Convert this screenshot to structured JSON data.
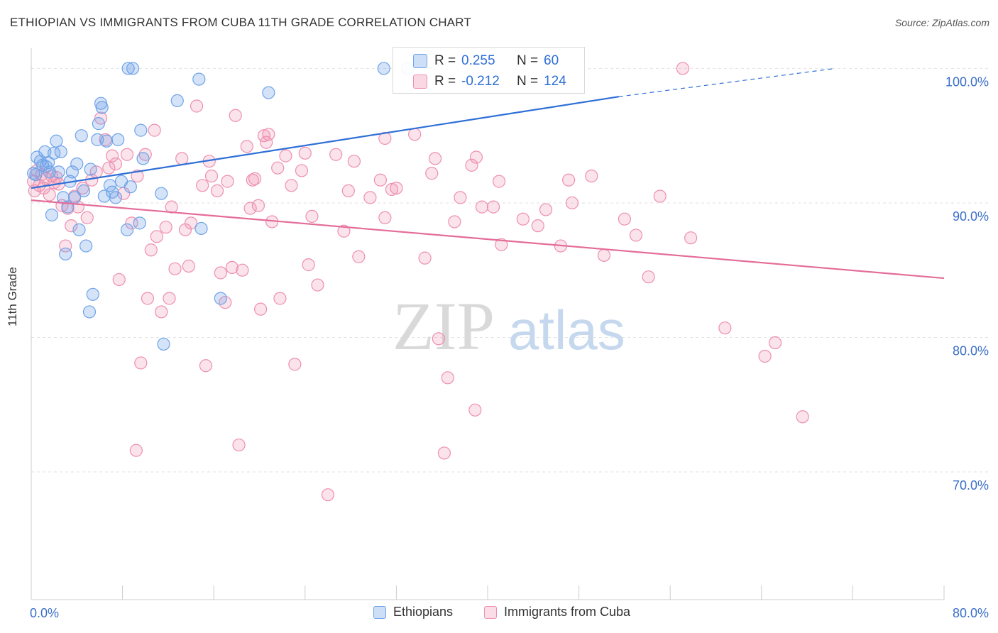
{
  "title": "ETHIOPIAN VS IMMIGRANTS FROM CUBA 11TH GRADE CORRELATION CHART",
  "source": "Source: ZipAtlas.com",
  "watermark": {
    "zip": "ZIP",
    "atlas": "atlas"
  },
  "colors": {
    "blue": "#6fa3e8",
    "blue_fill": "rgba(111,163,232,0.30)",
    "blue_line": "#2f6fd6",
    "pink": "#ee8faf",
    "pink_fill": "rgba(238,143,175,0.25)",
    "pink_line": "#e46c98",
    "axis_text": "#3b6fc9"
  },
  "stats": {
    "ethiopians": {
      "r_label": "R =",
      "r_value": "0.255",
      "n_label": "N =",
      "n_value": "60"
    },
    "cuba": {
      "r_label": "R =",
      "r_value": "-0.212",
      "n_label": "N =",
      "n_value": "124"
    }
  },
  "legend": {
    "ethiopians": "Ethiopians",
    "cuba": "Immigrants from Cuba"
  },
  "chart_data": {
    "type": "scatter",
    "title": "ETHIOPIAN VS IMMIGRANTS FROM CUBA 11TH GRADE CORRELATION CHART",
    "xlabel": "",
    "ylabel": "11th Grade",
    "xlim": [
      0,
      80
    ],
    "ylim": [
      60.5,
      101.5
    ],
    "x_tick_labels": [
      "0.0%",
      "80.0%"
    ],
    "y_ticks": [
      100,
      90,
      80,
      70
    ],
    "y_tick_labels": [
      "100.0%",
      "90.0%",
      "80.0%",
      "70.0%"
    ],
    "grid": true,
    "legend_position": "bottom",
    "series": [
      {
        "name": "Ethiopians",
        "color": "#6fa3e8",
        "trend": {
          "x": [
            0,
            51.5
          ],
          "y": [
            91.1,
            97.9
          ],
          "dashed_to": [
            51.5,
            51.8,
            97.9,
            100.0
          ]
        },
        "points": [
          [
            0.2,
            92.2
          ],
          [
            0.4,
            92.1
          ],
          [
            0.5,
            93.4
          ],
          [
            0.8,
            93.1
          ],
          [
            1.0,
            92.8
          ],
          [
            1.2,
            93.8
          ],
          [
            1.3,
            92.7
          ],
          [
            1.5,
            93.0
          ],
          [
            1.6,
            92.3
          ],
          [
            1.8,
            89.1
          ],
          [
            2.0,
            93.7
          ],
          [
            2.2,
            94.6
          ],
          [
            2.4,
            92.3
          ],
          [
            2.6,
            93.8
          ],
          [
            2.8,
            90.4
          ],
          [
            3.0,
            86.2
          ],
          [
            3.2,
            89.7
          ],
          [
            3.4,
            91.6
          ],
          [
            3.6,
            92.3
          ],
          [
            3.8,
            90.4
          ],
          [
            4.0,
            92.9
          ],
          [
            4.2,
            88.0
          ],
          [
            4.4,
            95.0
          ],
          [
            4.6,
            90.9
          ],
          [
            4.8,
            86.8
          ],
          [
            5.1,
            81.9
          ],
          [
            5.2,
            92.5
          ],
          [
            5.4,
            83.2
          ],
          [
            5.8,
            94.7
          ],
          [
            5.9,
            95.9
          ],
          [
            6.1,
            97.4
          ],
          [
            6.2,
            97.1
          ],
          [
            6.4,
            90.5
          ],
          [
            6.6,
            94.6
          ],
          [
            6.9,
            91.3
          ],
          [
            7.1,
            90.8
          ],
          [
            7.4,
            90.4
          ],
          [
            7.6,
            94.7
          ],
          [
            7.9,
            91.6
          ],
          [
            8.4,
            88.0
          ],
          [
            8.5,
            100.0
          ],
          [
            8.7,
            91.2
          ],
          [
            8.9,
            100.0
          ],
          [
            9.5,
            88.5
          ],
          [
            9.6,
            95.4
          ],
          [
            9.8,
            93.3
          ],
          [
            11.4,
            90.7
          ],
          [
            11.6,
            79.5
          ],
          [
            12.8,
            97.6
          ],
          [
            14.7,
            99.2
          ],
          [
            14.9,
            88.1
          ],
          [
            16.6,
            82.9
          ],
          [
            20.8,
            98.2
          ],
          [
            30.9,
            100.0
          ],
          [
            33.0,
            100.0
          ]
        ]
      },
      {
        "name": "Immigrants from Cuba",
        "color": "#ee8faf",
        "trend": {
          "x": [
            0,
            80
          ],
          "y": [
            90.2,
            84.4
          ]
        },
        "points": [
          [
            0.2,
            91.6
          ],
          [
            0.3,
            90.9
          ],
          [
            0.5,
            92.4
          ],
          [
            0.7,
            91.3
          ],
          [
            0.9,
            92.1
          ],
          [
            1.1,
            91.1
          ],
          [
            1.3,
            91.8
          ],
          [
            1.6,
            90.6
          ],
          [
            1.8,
            92.0
          ],
          [
            2.0,
            91.5
          ],
          [
            2.2,
            91.9
          ],
          [
            2.4,
            91.4
          ],
          [
            2.7,
            89.8
          ],
          [
            3.0,
            86.8
          ],
          [
            3.2,
            89.6
          ],
          [
            3.5,
            88.3
          ],
          [
            3.8,
            90.5
          ],
          [
            4.1,
            89.7
          ],
          [
            4.5,
            91.1
          ],
          [
            4.9,
            88.9
          ],
          [
            5.3,
            91.7
          ],
          [
            5.7,
            92.3
          ],
          [
            6.1,
            96.3
          ],
          [
            6.5,
            94.7
          ],
          [
            6.8,
            92.6
          ],
          [
            7.1,
            93.5
          ],
          [
            7.4,
            92.9
          ],
          [
            7.7,
            84.3
          ],
          [
            8.1,
            90.7
          ],
          [
            8.4,
            93.6
          ],
          [
            8.8,
            88.5
          ],
          [
            9.2,
            71.6
          ],
          [
            9.3,
            92.0
          ],
          [
            9.6,
            78.1
          ],
          [
            10.0,
            93.6
          ],
          [
            10.2,
            82.9
          ],
          [
            10.5,
            86.5
          ],
          [
            10.8,
            95.4
          ],
          [
            11.0,
            87.5
          ],
          [
            11.4,
            81.9
          ],
          [
            11.8,
            88.2
          ],
          [
            12.1,
            82.9
          ],
          [
            12.3,
            89.7
          ],
          [
            12.6,
            85.1
          ],
          [
            13.2,
            93.3
          ],
          [
            13.5,
            88.0
          ],
          [
            13.8,
            85.3
          ],
          [
            14.0,
            88.5
          ],
          [
            14.5,
            97.2
          ],
          [
            15.0,
            91.3
          ],
          [
            15.3,
            77.9
          ],
          [
            15.6,
            93.1
          ],
          [
            15.8,
            92.0
          ],
          [
            16.3,
            90.9
          ],
          [
            16.6,
            84.8
          ],
          [
            17.0,
            82.6
          ],
          [
            17.2,
            91.6
          ],
          [
            17.6,
            85.2
          ],
          [
            17.9,
            96.5
          ],
          [
            18.2,
            72.0
          ],
          [
            18.5,
            85.0
          ],
          [
            18.9,
            94.2
          ],
          [
            19.2,
            89.6
          ],
          [
            19.4,
            91.7
          ],
          [
            19.6,
            91.8
          ],
          [
            19.9,
            89.8
          ],
          [
            20.1,
            82.1
          ],
          [
            20.4,
            95.0
          ],
          [
            20.6,
            94.5
          ],
          [
            20.8,
            95.1
          ],
          [
            21.1,
            88.6
          ],
          [
            21.6,
            92.6
          ],
          [
            21.8,
            82.9
          ],
          [
            22.3,
            93.5
          ],
          [
            22.8,
            91.3
          ],
          [
            23.1,
            78.0
          ],
          [
            23.7,
            92.4
          ],
          [
            24.0,
            93.7
          ],
          [
            24.3,
            85.4
          ],
          [
            24.6,
            89.0
          ],
          [
            25.1,
            83.9
          ],
          [
            26.0,
            68.3
          ],
          [
            26.7,
            93.6
          ],
          [
            27.4,
            87.9
          ],
          [
            27.8,
            90.9
          ],
          [
            28.3,
            93.1
          ],
          [
            28.7,
            86.0
          ],
          [
            29.7,
            90.4
          ],
          [
            30.6,
            91.7
          ],
          [
            31.0,
            88.9
          ],
          [
            31.0,
            94.8
          ],
          [
            31.6,
            91.0
          ],
          [
            32.0,
            91.1
          ],
          [
            33.6,
            95.1
          ],
          [
            34.5,
            85.9
          ],
          [
            35.1,
            92.2
          ],
          [
            35.4,
            93.3
          ],
          [
            35.7,
            79.9
          ],
          [
            36.2,
            71.4
          ],
          [
            36.5,
            77.0
          ],
          [
            37.1,
            88.6
          ],
          [
            37.6,
            90.4
          ],
          [
            38.6,
            92.8
          ],
          [
            38.9,
            74.6
          ],
          [
            39.0,
            93.4
          ],
          [
            39.5,
            89.7
          ],
          [
            40.5,
            89.7
          ],
          [
            41.0,
            91.6
          ],
          [
            41.2,
            86.9
          ],
          [
            43.1,
            88.8
          ],
          [
            44.4,
            88.3
          ],
          [
            45.1,
            89.5
          ],
          [
            46.4,
            86.8
          ],
          [
            47.1,
            91.7
          ],
          [
            47.4,
            90.0
          ],
          [
            49.1,
            92.0
          ],
          [
            50.2,
            86.1
          ],
          [
            52.0,
            88.8
          ],
          [
            53.0,
            87.6
          ],
          [
            54.1,
            84.5
          ],
          [
            55.1,
            90.5
          ],
          [
            57.1,
            100.0
          ],
          [
            57.8,
            87.4
          ],
          [
            60.8,
            80.7
          ],
          [
            64.3,
            78.6
          ],
          [
            65.2,
            79.6
          ],
          [
            67.6,
            74.1
          ]
        ]
      }
    ]
  }
}
